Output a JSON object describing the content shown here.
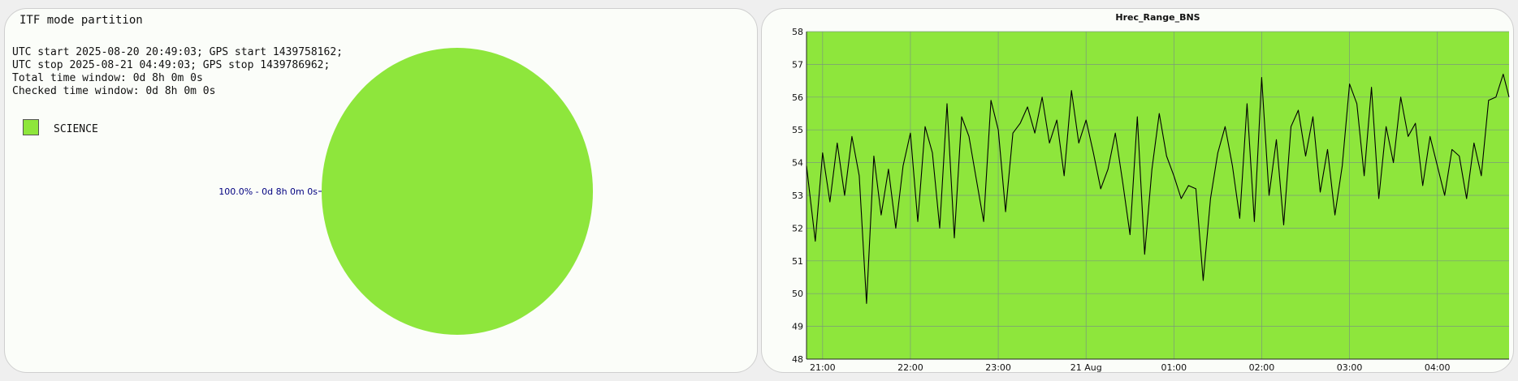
{
  "pie_panel": {
    "title": "ITF mode partition",
    "info": [
      "UTC start 2025-08-20 20:49:03; GPS start 1439758162;",
      "UTC stop 2025-08-21 04:49:03; GPS stop 1439786962;",
      "Total time window: 0d 8h 0m 0s",
      "Checked time window: 0d 8h 0m 0s"
    ],
    "legend": {
      "label": "SCIENCE",
      "color": "#8ee63c"
    }
  },
  "chart_data": [
    {
      "type": "pie",
      "title": "ITF mode partition",
      "slices": [
        {
          "label": "SCIENCE",
          "value": 100.0,
          "color": "#8ee63c",
          "annotation": "100.0% - 0d 8h 0m 0s"
        }
      ]
    },
    {
      "type": "line",
      "title": "Hrec_Range_BNS",
      "xlabel": "",
      "ylabel": "",
      "ylim": [
        48,
        58
      ],
      "yticks": [
        "48",
        "49",
        "50",
        "51",
        "52",
        "53",
        "54",
        "55",
        "56",
        "57",
        "58"
      ],
      "xlim": [
        "2025-08-20 20:49",
        "2025-08-21 04:49"
      ],
      "xticks": [
        {
          "t": "2025-08-20 21:00",
          "label": "21:00"
        },
        {
          "t": "2025-08-20 22:00",
          "label": "22:00"
        },
        {
          "t": "2025-08-20 23:00",
          "label": "23:00"
        },
        {
          "t": "2025-08-21 00:00",
          "label": "21 Aug"
        },
        {
          "t": "2025-08-21 01:00",
          "label": "01:00"
        },
        {
          "t": "2025-08-21 02:00",
          "label": "02:00"
        },
        {
          "t": "2025-08-21 03:00",
          "label": "03:00"
        },
        {
          "t": "2025-08-21 04:00",
          "label": "04:00"
        }
      ],
      "grid": true,
      "background": "#8ee63c",
      "line_color": "#000000",
      "series": [
        {
          "x": [
            "2025-08-20 20:49",
            "2025-08-20 20:55",
            "2025-08-20 21:00",
            "2025-08-20 21:05",
            "2025-08-20 21:10",
            "2025-08-20 21:15",
            "2025-08-20 21:20",
            "2025-08-20 21:25",
            "2025-08-20 21:30",
            "2025-08-20 21:35",
            "2025-08-20 21:40",
            "2025-08-20 21:45",
            "2025-08-20 21:50",
            "2025-08-20 21:55",
            "2025-08-20 22:00",
            "2025-08-20 22:05",
            "2025-08-20 22:10",
            "2025-08-20 22:15",
            "2025-08-20 22:20",
            "2025-08-20 22:25",
            "2025-08-20 22:30",
            "2025-08-20 22:35",
            "2025-08-20 22:40",
            "2025-08-20 22:45",
            "2025-08-20 22:50",
            "2025-08-20 22:55",
            "2025-08-20 23:00",
            "2025-08-20 23:05",
            "2025-08-20 23:10",
            "2025-08-20 23:15",
            "2025-08-20 23:20",
            "2025-08-20 23:25",
            "2025-08-20 23:30",
            "2025-08-20 23:35",
            "2025-08-20 23:40",
            "2025-08-20 23:45",
            "2025-08-20 23:50",
            "2025-08-20 23:55",
            "2025-08-21 00:00",
            "2025-08-21 00:05",
            "2025-08-21 00:10",
            "2025-08-21 00:15",
            "2025-08-21 00:20",
            "2025-08-21 00:25",
            "2025-08-21 00:30",
            "2025-08-21 00:35",
            "2025-08-21 00:40",
            "2025-08-21 00:45",
            "2025-08-21 00:50",
            "2025-08-21 00:55",
            "2025-08-21 01:00",
            "2025-08-21 01:05",
            "2025-08-21 01:10",
            "2025-08-21 01:15",
            "2025-08-21 01:20",
            "2025-08-21 01:25",
            "2025-08-21 01:30",
            "2025-08-21 01:35",
            "2025-08-21 01:40",
            "2025-08-21 01:45",
            "2025-08-21 01:50",
            "2025-08-21 01:55",
            "2025-08-21 02:00",
            "2025-08-21 02:05",
            "2025-08-21 02:10",
            "2025-08-21 02:15",
            "2025-08-21 02:20",
            "2025-08-21 02:25",
            "2025-08-21 02:30",
            "2025-08-21 02:35",
            "2025-08-21 02:40",
            "2025-08-21 02:45",
            "2025-08-21 02:50",
            "2025-08-21 02:55",
            "2025-08-21 03:00",
            "2025-08-21 03:05",
            "2025-08-21 03:10",
            "2025-08-21 03:15",
            "2025-08-21 03:20",
            "2025-08-21 03:25",
            "2025-08-21 03:30",
            "2025-08-21 03:35",
            "2025-08-21 03:40",
            "2025-08-21 03:45",
            "2025-08-21 03:50",
            "2025-08-21 03:55",
            "2025-08-21 04:00",
            "2025-08-21 04:05",
            "2025-08-21 04:10",
            "2025-08-21 04:15",
            "2025-08-21 04:20",
            "2025-08-21 04:25",
            "2025-08-21 04:30",
            "2025-08-21 04:35",
            "2025-08-21 04:40",
            "2025-08-21 04:45",
            "2025-08-21 04:49"
          ],
          "y": [
            53.9,
            51.6,
            54.3,
            52.8,
            54.6,
            53.0,
            54.8,
            53.6,
            49.7,
            54.2,
            52.4,
            53.8,
            52.0,
            53.9,
            54.9,
            52.2,
            55.1,
            54.3,
            52.0,
            55.8,
            51.7,
            55.4,
            54.8,
            53.5,
            52.2,
            55.9,
            55.0,
            52.5,
            54.9,
            55.2,
            55.7,
            54.9,
            56.0,
            54.6,
            55.3,
            53.6,
            56.2,
            54.6,
            55.3,
            54.3,
            53.2,
            53.8,
            54.9,
            53.4,
            51.8,
            55.4,
            51.2,
            53.8,
            55.5,
            54.2,
            53.6,
            52.9,
            53.3,
            53.2,
            50.4,
            52.9,
            54.3,
            55.1,
            53.9,
            52.3,
            55.8,
            52.2,
            56.6,
            53.0,
            54.7,
            52.1,
            55.1,
            55.6,
            54.2,
            55.4,
            53.1,
            54.4,
            52.4,
            53.9,
            56.4,
            55.8,
            53.6,
            56.3,
            52.9,
            55.1,
            54.0,
            56.0,
            54.8,
            55.2,
            53.3,
            54.8,
            53.9,
            53.0,
            54.4,
            54.2,
            52.9,
            54.6,
            53.6,
            55.9,
            56.0,
            56.7,
            56.0
          ]
        }
      ]
    }
  ]
}
